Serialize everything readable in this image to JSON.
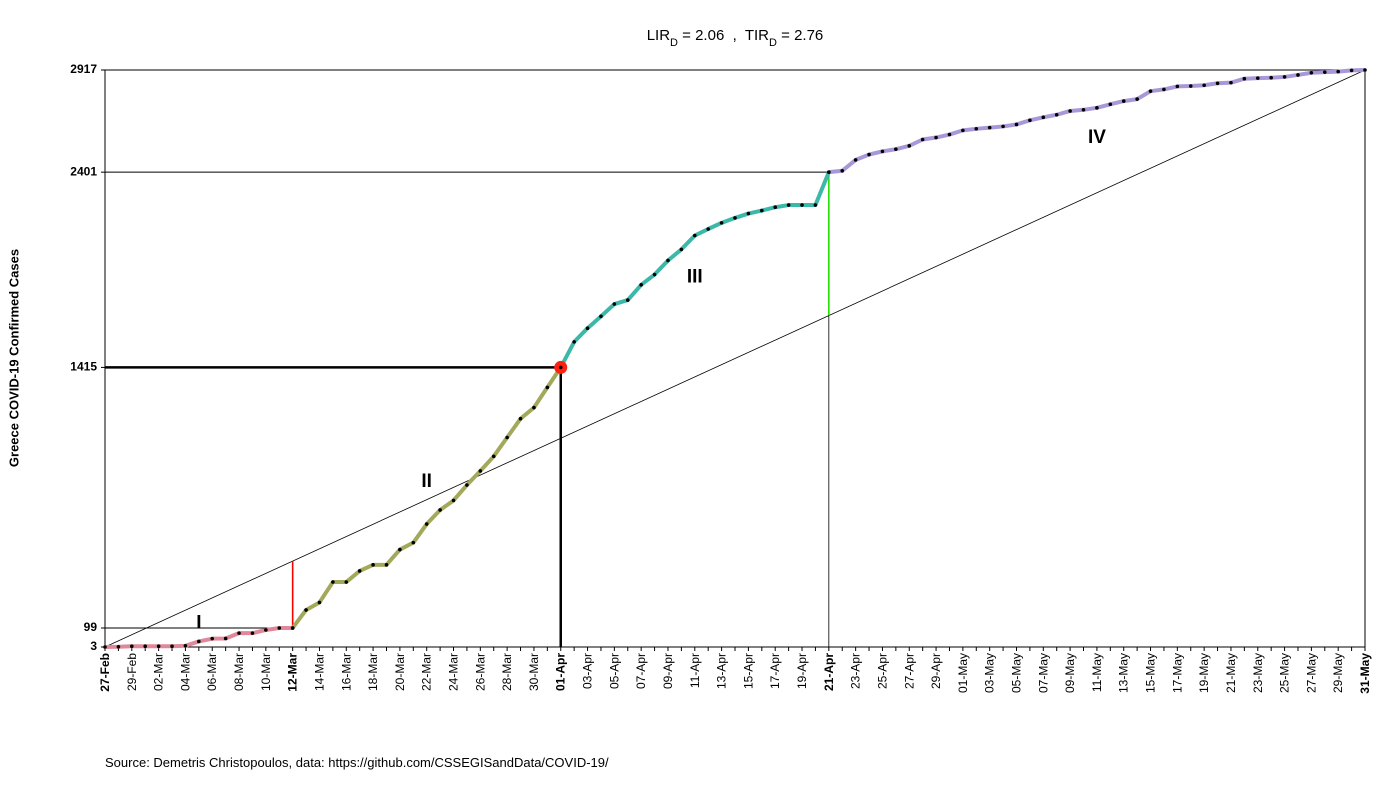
{
  "chart_data": {
    "type": "line",
    "title_parts": [
      "LIR",
      "D",
      " = 2.06  ,  TIR",
      "D",
      " = 2.76"
    ],
    "y_label": "Greece COVID-19 Confirmed Cases",
    "source": "Source: Demetris Christopoulos, data: https://github.com/CSSEGISandData/COVID-19/",
    "categories": [
      "27-Feb",
      null,
      "29-Feb",
      null,
      "02-Mar",
      null,
      "04-Mar",
      null,
      "06-Mar",
      null,
      "08-Mar",
      null,
      "10-Mar",
      null,
      "12-Mar",
      null,
      "14-Mar",
      null,
      "16-Mar",
      null,
      "18-Mar",
      null,
      "20-Mar",
      null,
      "22-Mar",
      null,
      "24-Mar",
      null,
      "26-Mar",
      null,
      "28-Mar",
      null,
      "30-Mar",
      null,
      "01-Apr",
      null,
      "03-Apr",
      null,
      "05-Apr",
      null,
      "07-Apr",
      null,
      "09-Apr",
      null,
      "11-Apr",
      null,
      "13-Apr",
      null,
      "15-Apr",
      null,
      "17-Apr",
      null,
      "19-Apr",
      null,
      "21-Apr",
      null,
      "23-Apr",
      null,
      "25-Apr",
      null,
      "27-Apr",
      null,
      "29-Apr",
      null,
      "01-May",
      null,
      "03-May",
      null,
      "05-May",
      null,
      "07-May",
      null,
      "09-May",
      null,
      "11-May",
      null,
      "13-May",
      null,
      "15-May",
      null,
      "17-May",
      null,
      "19-May",
      null,
      "21-May",
      null,
      "23-May",
      null,
      "25-May",
      null,
      "27-May",
      null,
      "29-May",
      null,
      "31-May"
    ],
    "series": [
      {
        "name": "I",
        "color": "#e0889a",
        "boundary": {
          "color": "#ff0000",
          "span": "diagonal",
          "width": 1
        },
        "values": [
          3,
          4,
          7,
          7,
          7,
          7,
          9,
          31,
          45,
          46,
          73,
          73,
          89,
          99,
          99,
          null,
          null,
          null,
          null,
          null,
          null,
          null,
          null,
          null,
          null,
          null,
          null,
          null,
          null,
          null,
          null,
          null,
          null,
          null,
          null,
          null,
          null,
          null,
          null,
          null,
          null,
          null,
          null,
          null,
          null,
          null,
          null,
          null,
          null,
          null,
          null,
          null,
          null,
          null,
          null,
          null,
          null,
          null,
          null,
          null,
          null,
          null,
          null,
          null,
          null,
          null,
          null,
          null,
          null,
          null,
          null,
          null,
          null,
          null,
          null,
          null,
          null,
          null,
          null,
          null,
          null,
          null,
          null,
          null,
          null,
          null,
          null,
          null,
          null,
          null,
          null,
          null,
          null,
          null,
          null
        ]
      },
      {
        "name": "II",
        "color": "#a3a95a",
        "end_marker": "#ff2010",
        "boundary": {
          "color": "#000000",
          "span": "axis",
          "width": 2.5
        },
        "values": [
          null,
          null,
          null,
          null,
          null,
          null,
          null,
          null,
          null,
          null,
          null,
          null,
          null,
          null,
          99,
          190,
          228,
          331,
          331,
          387,
          418,
          418,
          495,
          530,
          624,
          695,
          743,
          821,
          892,
          966,
          1061,
          1156,
          1212,
          1314,
          1415,
          null,
          null,
          null,
          null,
          null,
          null,
          null,
          null,
          null,
          null,
          null,
          null,
          null,
          null,
          null,
          null,
          null,
          null,
          null,
          null,
          null,
          null,
          null,
          null,
          null,
          null,
          null,
          null,
          null,
          null,
          null,
          null,
          null,
          null,
          null,
          null,
          null,
          null,
          null,
          null,
          null,
          null,
          null,
          null,
          null,
          null,
          null,
          null,
          null,
          null,
          null,
          null,
          null,
          null,
          null,
          null,
          null,
          null,
          null,
          null
        ]
      },
      {
        "name": "III",
        "color": "#3cb8a9",
        "boundary": {
          "color": "#22e000",
          "span": "diagonal",
          "width": 1
        },
        "values": [
          null,
          null,
          null,
          null,
          null,
          null,
          null,
          null,
          null,
          null,
          null,
          null,
          null,
          null,
          null,
          null,
          null,
          null,
          null,
          null,
          null,
          null,
          null,
          null,
          null,
          null,
          null,
          null,
          null,
          null,
          null,
          null,
          null,
          null,
          1415,
          1544,
          1613,
          1673,
          1735,
          1755,
          1832,
          1884,
          1955,
          2011,
          2081,
          2114,
          2145,
          2170,
          2192,
          2207,
          2224,
          2235,
          2235,
          2235,
          2401,
          null,
          null,
          null,
          null,
          null,
          null,
          null,
          null,
          null,
          null,
          null,
          null,
          null,
          null,
          null,
          null,
          null,
          null,
          null,
          null,
          null,
          null,
          null,
          null,
          null,
          null,
          null,
          null,
          null,
          null,
          null,
          null,
          null,
          null,
          null,
          null,
          null,
          null,
          null,
          null
        ]
      },
      {
        "name": "IV",
        "color": "#a898d8",
        "values": [
          null,
          null,
          null,
          null,
          null,
          null,
          null,
          null,
          null,
          null,
          null,
          null,
          null,
          null,
          null,
          null,
          null,
          null,
          null,
          null,
          null,
          null,
          null,
          null,
          null,
          null,
          null,
          null,
          null,
          null,
          null,
          null,
          null,
          null,
          null,
          null,
          null,
          null,
          null,
          null,
          null,
          null,
          null,
          null,
          null,
          null,
          null,
          null,
          null,
          null,
          null,
          null,
          null,
          null,
          2401,
          2408,
          2463,
          2490,
          2506,
          2517,
          2534,
          2566,
          2576,
          2591,
          2612,
          2620,
          2626,
          2632,
          2642,
          2663,
          2678,
          2691,
          2710,
          2716,
          2726,
          2744,
          2760,
          2770,
          2810,
          2819,
          2834,
          2836,
          2840,
          2850,
          2853,
          2873,
          2876,
          2878,
          2882,
          2892,
          2903,
          2906,
          2909,
          2915,
          2917
        ]
      }
    ],
    "ylim": [
      3,
      2917
    ],
    "yticks": [
      3,
      99,
      1415,
      2401,
      2917
    ]
  }
}
